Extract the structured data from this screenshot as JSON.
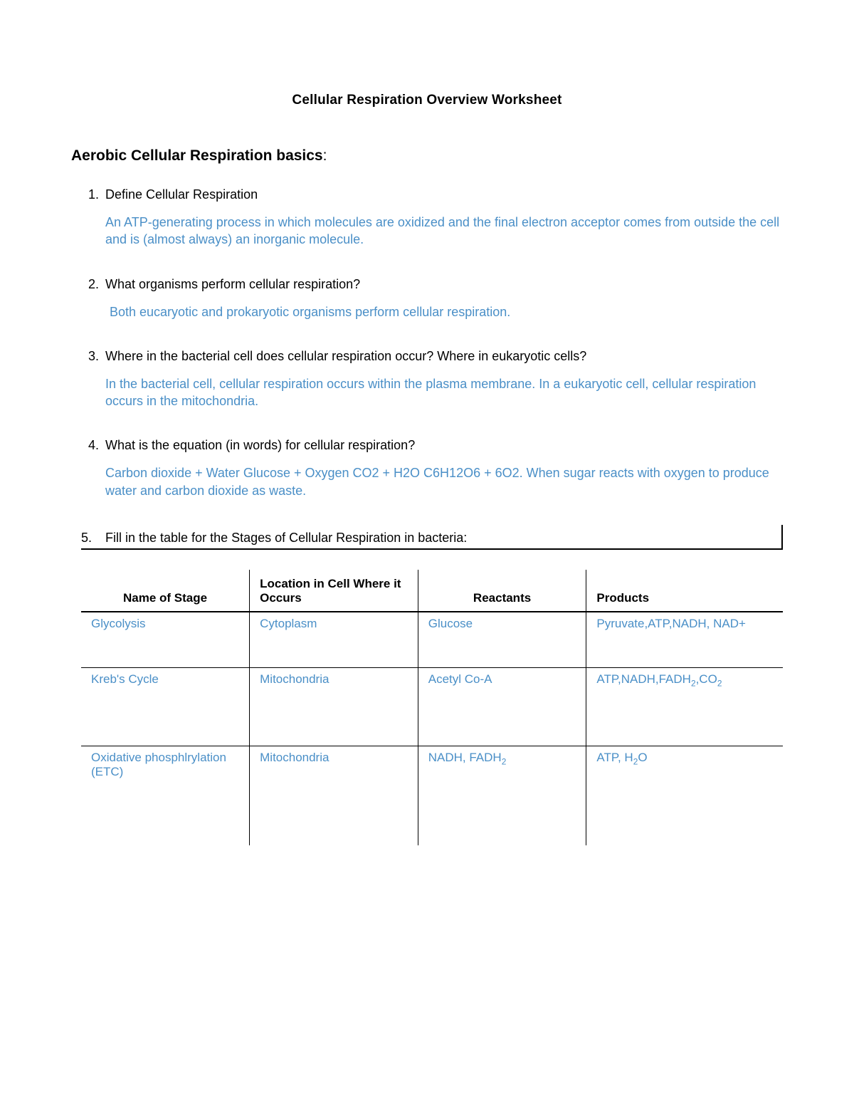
{
  "colors": {
    "text": "#000000",
    "answer": "#4A8FC7",
    "background": "#ffffff",
    "table_border": "#000000"
  },
  "typography": {
    "base_font": "Trebuchet MS",
    "title_size_pt": 14,
    "heading_size_pt": 16,
    "body_size_pt": 13
  },
  "title": "Cellular Respiration Overview Worksheet",
  "section_heading": "Aerobic Cellular Respiration basics",
  "questions": [
    {
      "q": "Define Cellular Respiration",
      "a": "An ATP-generating process in which molecules are oxidized and the final electron acceptor comes from outside the cell and is (almost always) an inorganic molecule."
    },
    {
      "q": "What organisms perform cellular respiration?",
      "a": "Both eucaryotic and prokaryotic organisms perform cellular respiration."
    },
    {
      "q": "Where in the bacterial cell does cellular respiration occur? Where in eukaryotic cells?",
      "a": "In the bacterial cell, cellular respiration occurs within the plasma membrane.  In a eukaryotic cell, cellular respiration occurs in the mitochondria."
    },
    {
      "q": " What is the equation (in words) for cellular respiration?",
      "a": "Carbon dioxide + Water Glucose + Oxygen CO2 + H2O C6H12O6 + 6O2.  When sugar reacts with oxygen to produce water and carbon dioxide as waste."
    }
  ],
  "q5_num": "5.",
  "q5_text": "Fill in the table for the Stages of Cellular Respiration in bacteria:",
  "table": {
    "columns": [
      "Name of Stage",
      "Location in Cell Where it Occurs",
      "Reactants",
      "Products"
    ],
    "col_widths_pct": [
      24,
      24,
      24,
      28
    ],
    "header_align": [
      "center",
      "left",
      "center",
      "left"
    ],
    "rows": [
      {
        "name": "Glycolysis",
        "location": "Cytoplasm",
        "reactants": "Glucose",
        "products": "Pyruvate,ATP,NADH, NAD+"
      },
      {
        "name": "Kreb's Cycle",
        "location": "Mitochondria",
        "reactants": "Acetyl Co-A",
        "products_html": "ATP,NADH,FADH<span class='sub'>2</span>,CO<span class='sub'>2</span>"
      },
      {
        "name": "Oxidative phosphlrylation (ETC)",
        "location": "Mitochondria",
        "reactants_html": "NADH, FADH<span class='sub'>2</span>",
        "products_html": "ATP, H<span class='sub'>2</span>O"
      }
    ]
  }
}
